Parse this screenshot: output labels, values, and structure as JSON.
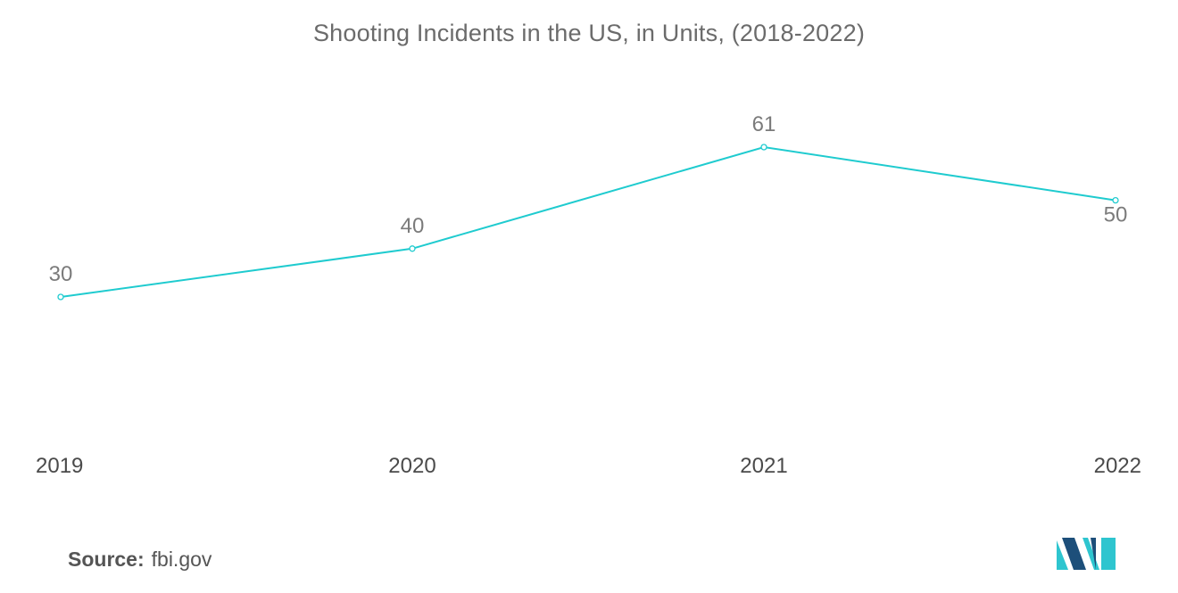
{
  "chart_data": {
    "type": "line",
    "title": "Shooting Incidents in the US, in Units, (2018-2022)",
    "categories": [
      "2019",
      "2020",
      "2021",
      "2022"
    ],
    "series": [
      {
        "values": [
          30,
          40,
          61,
          50
        ]
      }
    ],
    "data_labels": [
      "30",
      "40",
      "61",
      "50"
    ],
    "xlabel": "",
    "ylabel": "",
    "grid": false,
    "legend": "none"
  },
  "source": {
    "label": "Source:",
    "value": "fbi.gov"
  },
  "colors": {
    "line": "#1fcbcf",
    "logo_dark": "#1d4f7a",
    "logo_light": "#2ec5cf"
  },
  "logo": {
    "name": "mordor-intelligence-logo-icon"
  }
}
